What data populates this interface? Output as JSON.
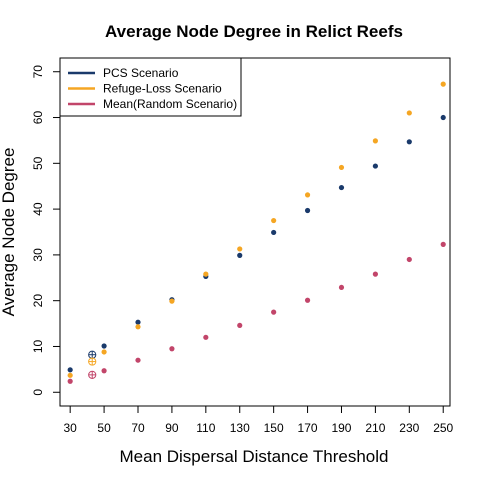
{
  "chart_data": {
    "type": "scatter",
    "title": "Average Node Degree in Relict Reefs",
    "xlabel": "Mean Dispersal Distance Threshold",
    "ylabel": "Average Node Degree",
    "x_ticks": [
      30,
      50,
      70,
      90,
      110,
      130,
      150,
      170,
      190,
      210,
      230,
      250
    ],
    "y_ticks": [
      0,
      10,
      20,
      30,
      40,
      50,
      60,
      70
    ],
    "xlim": [
      24,
      254
    ],
    "ylim": [
      -3,
      73
    ],
    "grid": false,
    "legend_position": "top-left",
    "x": [
      30,
      50,
      70,
      90,
      110,
      130,
      150,
      170,
      190,
      210,
      230,
      250
    ],
    "series": [
      {
        "name": "PCS Scenario",
        "color": "#1a3a6b",
        "values": [
          4.9,
          10.1,
          15.3,
          20.2,
          25.3,
          29.9,
          34.9,
          39.7,
          44.7,
          49.4,
          54.7,
          60.0
        ]
      },
      {
        "name": "Refuge-Loss Scenario",
        "color": "#f5a623",
        "values": [
          3.7,
          8.8,
          14.3,
          19.9,
          25.8,
          31.3,
          37.5,
          43.1,
          49.1,
          54.9,
          61.0,
          67.3
        ]
      },
      {
        "name": "Mean(Random Scenario)",
        "color": "#c2456a",
        "values": [
          2.4,
          4.7,
          7.0,
          9.5,
          12.0,
          14.6,
          17.5,
          20.1,
          22.9,
          25.8,
          29.0,
          32.3
        ]
      }
    ],
    "open_markers": [
      {
        "series": 0,
        "x": 43,
        "y": 8.2
      },
      {
        "series": 1,
        "x": 43,
        "y": 6.7
      },
      {
        "series": 2,
        "x": 43,
        "y": 3.8
      }
    ]
  }
}
